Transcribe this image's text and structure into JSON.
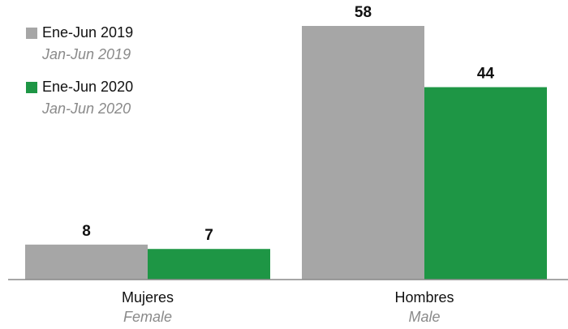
{
  "chart_data": {
    "type": "bar",
    "categories": [
      "Mujeres",
      "Hombres"
    ],
    "categories_en": [
      "Female",
      "Male"
    ],
    "series": [
      {
        "name": "Ene-Jun 2019",
        "name_en": "Jan-Jun 2019",
        "color": "#a6a6a6",
        "values": [
          8,
          58
        ]
      },
      {
        "name": "Ene-Jun 2020",
        "name_en": "Jan-Jun 2020",
        "color": "#1e9645",
        "values": [
          7,
          44
        ]
      }
    ]
  }
}
